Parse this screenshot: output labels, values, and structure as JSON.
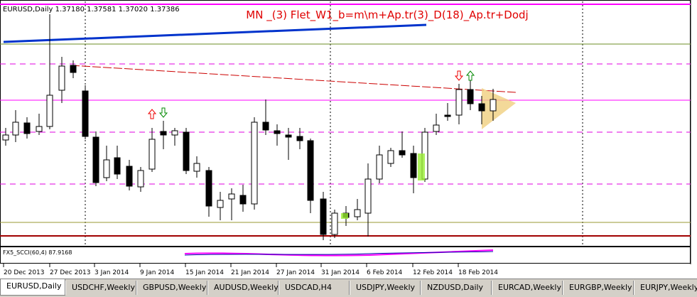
{
  "chart_window": {
    "header": "EURUSD,Daily  1.37180 1.37581 1.37020 1.37386",
    "title": "MN _(3) Flet_W1_b=m\\m+Ap.tr(3)_D(18)_Ap.tr+Dodj",
    "indicator_label": "FX5_SCCI(60,4) 87.9168",
    "x_axis_labels": [
      "20 Dec 2013",
      "27 Dec 2013",
      "3 Jan 2014",
      "9 Jan 2014",
      "15 Jan 2014",
      "21 Jan 2014",
      "27 Jan 2014",
      "31 Jan 2014",
      "6 Feb 2014",
      "12 Feb 2014",
      "18 Feb 2014"
    ]
  },
  "tabs": [
    "EURUSD,Daily",
    "USDCHF,Weekly",
    "GBPUSD,Weekly",
    "AUDUSD,Weekly",
    "USDCAD,H4",
    "USDJPY,Weekly",
    "NZDUSD,Daily",
    "EURCAD,Weekly",
    "EURGBP,Weekly",
    "EURJPY,Weekly"
  ]
}
